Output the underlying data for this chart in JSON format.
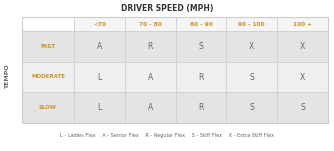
{
  "title": "DRIVER SPEED (MPH)",
  "col_headers": [
    "<70",
    "70 - 80",
    "80 - 90",
    "90 - 100",
    "100 +"
  ],
  "row_headers": [
    "FAST",
    "MODERATE",
    "SLOW"
  ],
  "row_header_color": "#c8922a",
  "col_header_color": "#c8922a",
  "cell_data": [
    [
      "A",
      "R",
      "S",
      "X",
      "X"
    ],
    [
      "L",
      "A",
      "R",
      "S",
      "X"
    ],
    [
      "L",
      "A",
      "R",
      "S",
      "S"
    ]
  ],
  "cell_text_color": "#666666",
  "white_cell_color": "#ffffff",
  "grid_color": "#cccccc",
  "tempo_label": "TEMPO",
  "legend": "L - Ladies Flex    A - Senior Flex    R - Regular Flex    S - Stiff Flex    X - Extra Stiff Flex",
  "legend_color": "#666666",
  "title_color": "#333333",
  "odd_row_color": "#e4e4e4",
  "even_row_color": "#efefef",
  "header_row_color": "#f5f5f5",
  "top_left_color": "#ffffff"
}
